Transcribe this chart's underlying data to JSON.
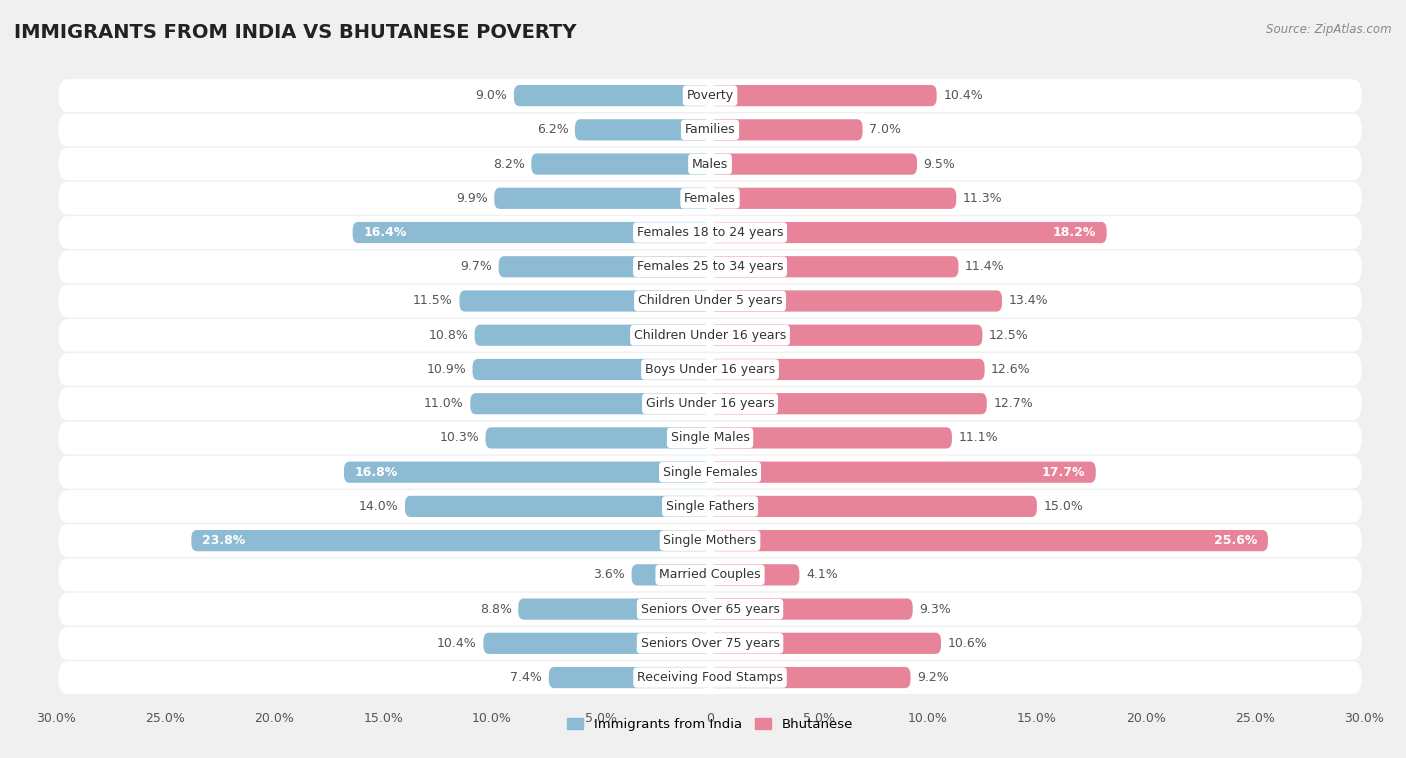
{
  "title": "IMMIGRANTS FROM INDIA VS BHUTANESE POVERTY",
  "source": "Source: ZipAtlas.com",
  "categories": [
    "Poverty",
    "Families",
    "Males",
    "Females",
    "Females 18 to 24 years",
    "Females 25 to 34 years",
    "Children Under 5 years",
    "Children Under 16 years",
    "Boys Under 16 years",
    "Girls Under 16 years",
    "Single Males",
    "Single Females",
    "Single Fathers",
    "Single Mothers",
    "Married Couples",
    "Seniors Over 65 years",
    "Seniors Over 75 years",
    "Receiving Food Stamps"
  ],
  "india_values": [
    9.0,
    6.2,
    8.2,
    9.9,
    16.4,
    9.7,
    11.5,
    10.8,
    10.9,
    11.0,
    10.3,
    16.8,
    14.0,
    23.8,
    3.6,
    8.8,
    10.4,
    7.4
  ],
  "bhutan_values": [
    10.4,
    7.0,
    9.5,
    11.3,
    18.2,
    11.4,
    13.4,
    12.5,
    12.6,
    12.7,
    11.1,
    17.7,
    15.0,
    25.6,
    4.1,
    9.3,
    10.6,
    9.2
  ],
  "india_color": "#8dbbd4",
  "bhutan_color": "#e8849a",
  "row_bg_color": "#e8e8e8",
  "bar_row_color": "#ffffff",
  "background_color": "#f0f0f0",
  "xlim": 30.0,
  "bar_height": 0.62,
  "title_fontsize": 14,
  "label_fontsize": 9,
  "tick_fontsize": 9,
  "value_fontsize": 9
}
